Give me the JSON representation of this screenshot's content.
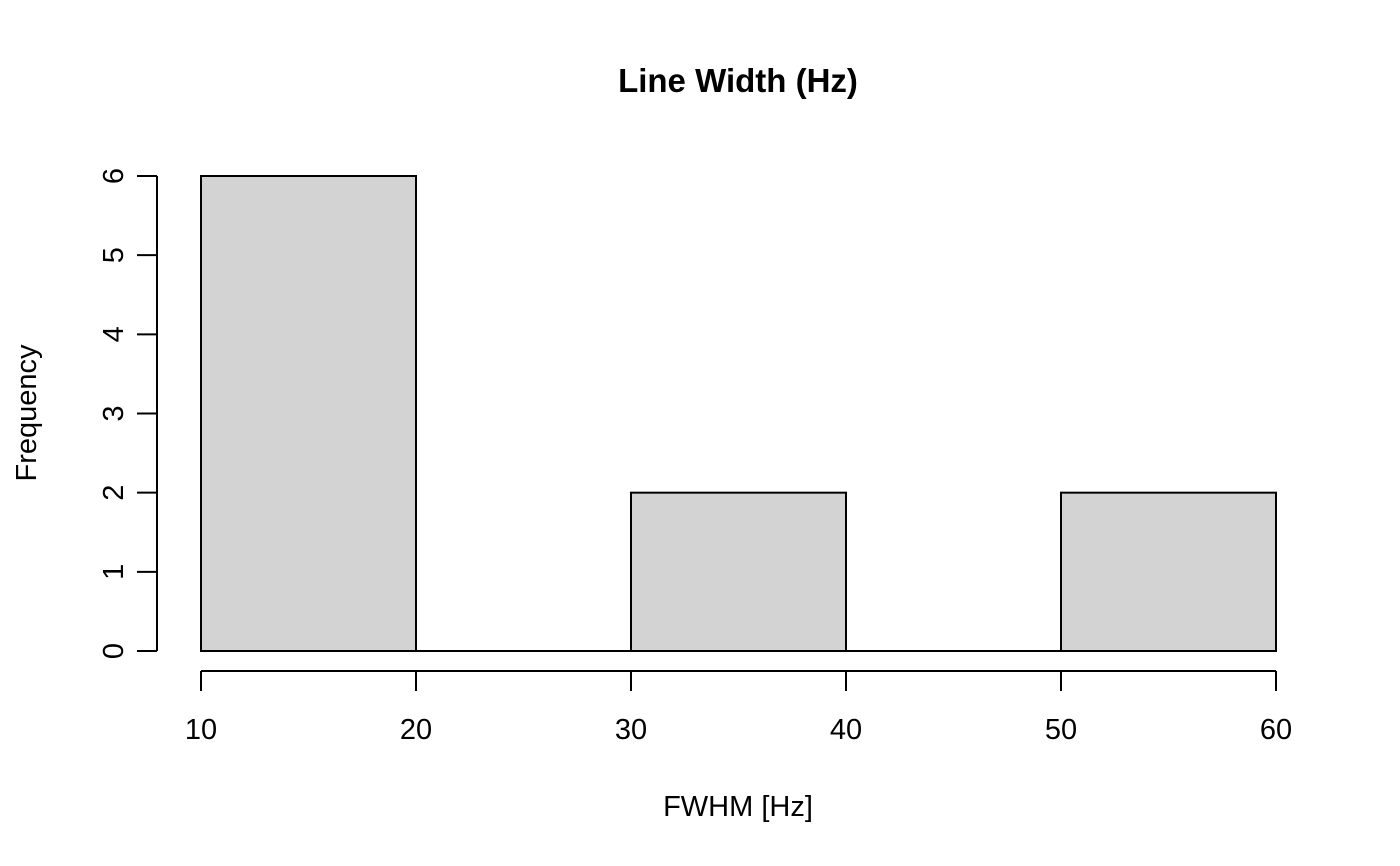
{
  "chart_data": {
    "type": "bar",
    "title": "Line Width (Hz)",
    "xlabel": "FWHM [Hz]",
    "ylabel": "Frequency",
    "bins": [
      {
        "from": 10,
        "to": 20,
        "count": 6
      },
      {
        "from": 20,
        "to": 30,
        "count": 0
      },
      {
        "from": 30,
        "to": 40,
        "count": 2
      },
      {
        "from": 40,
        "to": 50,
        "count": 0
      },
      {
        "from": 50,
        "to": 60,
        "count": 2
      }
    ],
    "xlim": [
      10,
      60
    ],
    "ylim": [
      0,
      6
    ],
    "x_ticks": [
      10,
      20,
      30,
      40,
      50,
      60
    ],
    "y_ticks": [
      0,
      1,
      2,
      3,
      4,
      5,
      6
    ],
    "grid": false,
    "bar_color": "#d3d3d3",
    "edge_color": "#000000"
  }
}
